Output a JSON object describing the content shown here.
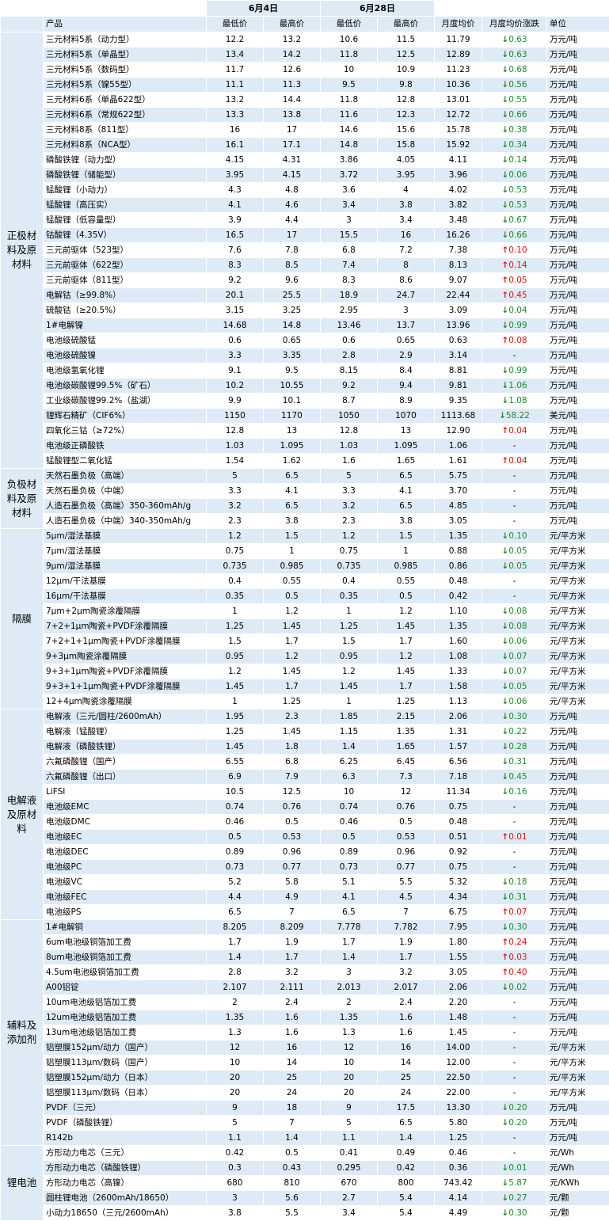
{
  "dates": {
    "d1": "6月4日",
    "d2": "6月28日"
  },
  "headers": [
    "产品",
    "最低价",
    "最高价",
    "最低价",
    "最高价",
    "月度均价",
    "月度均价涨跌",
    "单位"
  ],
  "categories": [
    {
      "name": "正极材料及原材料",
      "rows": [
        [
          "三元材料5系（动力型）",
          "12.2",
          "13.2",
          "10.6",
          "11.5",
          "11.79",
          "down",
          "0.63",
          "万元/吨"
        ],
        [
          "三元材料5系（单晶型）",
          "13.4",
          "14.2",
          "11.8",
          "12.5",
          "12.89",
          "down",
          "0.63",
          "万元/吨"
        ],
        [
          "三元材料5系（数码型）",
          "11.7",
          "12.6",
          "10",
          "10.9",
          "11.23",
          "down",
          "0.68",
          "万元/吨"
        ],
        [
          "三元材料5系（镍55型）",
          "11.1",
          "11.3",
          "9.5",
          "9.8",
          "10.36",
          "down",
          "0.56",
          "万元/吨"
        ],
        [
          "三元材料6系（单晶622型）",
          "13.2",
          "14.4",
          "11.8",
          "12.8",
          "13.01",
          "down",
          "0.55",
          "万元/吨"
        ],
        [
          "三元材料6系（常规622型）",
          "13.3",
          "13.8",
          "11.6",
          "12.3",
          "12.72",
          "down",
          "0.66",
          "万元/吨"
        ],
        [
          "三元材料8系（811型）",
          "16",
          "17",
          "14.6",
          "15.6",
          "15.78",
          "down",
          "0.38",
          "万元/吨"
        ],
        [
          "三元材料8系（NCA型）",
          "16.1",
          "17.1",
          "14.8",
          "15.8",
          "15.92",
          "down",
          "0.34",
          "万元/吨"
        ],
        [
          "磷酸铁锂（动力型）",
          "4.15",
          "4.31",
          "3.86",
          "4.05",
          "4.11",
          "down",
          "0.14",
          "万元/吨"
        ],
        [
          "磷酸铁锂（储能型）",
          "3.95",
          "4.15",
          "3.72",
          "3.95",
          "3.96",
          "down",
          "0.06",
          "万元/吨"
        ],
        [
          "锰酸锂（小动力）",
          "4.3",
          "4.8",
          "3.6",
          "4",
          "4.02",
          "down",
          "0.53",
          "万元/吨"
        ],
        [
          "锰酸锂（高压实）",
          "4.1",
          "4.6",
          "3.4",
          "3.8",
          "3.82",
          "down",
          "0.53",
          "万元/吨"
        ],
        [
          "锰酸锂（低容量型）",
          "3.9",
          "4.4",
          "3",
          "3.4",
          "3.48",
          "down",
          "0.67",
          "万元/吨"
        ],
        [
          "钴酸锂（4.35V）",
          "16.5",
          "17",
          "15.5",
          "16",
          "16.26",
          "down",
          "0.66",
          "万元/吨"
        ],
        [
          "三元前驱体（523型）",
          "7.6",
          "7.8",
          "6.8",
          "7.2",
          "7.38",
          "up",
          "0.10",
          "万元/吨"
        ],
        [
          "三元前驱体（622型）",
          "8.3",
          "8.5",
          "7.4",
          "8",
          "8.13",
          "up",
          "0.14",
          "万元/吨"
        ],
        [
          "三元前驱体（811型）",
          "9.2",
          "9.6",
          "8.3",
          "8.6",
          "9.07",
          "up",
          "0.05",
          "万元/吨"
        ],
        [
          "电解钴（≥99.8%）",
          "20.1",
          "25.5",
          "18.9",
          "24.7",
          "22.44",
          "up",
          "0.45",
          "万元/吨"
        ],
        [
          "硫酸钴（≥20.5%）",
          "3.15",
          "3.25",
          "2.95",
          "3",
          "3.09",
          "down",
          "0.04",
          "万元/吨"
        ],
        [
          "1#电解镍",
          "14.68",
          "14.8",
          "13.46",
          "13.7",
          "13.96",
          "down",
          "0.99",
          "万元/吨"
        ],
        [
          "电池级硫酸锰",
          "0.6",
          "0.65",
          "0.6",
          "0.65",
          "0.63",
          "up",
          "0.08",
          "万元/吨"
        ],
        [
          "电池级硫酸镍",
          "3.3",
          "3.35",
          "2.8",
          "2.9",
          "3.14",
          "none",
          "-",
          "万元/吨"
        ],
        [
          "电池级氢氧化锂",
          "9.1",
          "9.5",
          "8.15",
          "8.4",
          "8.81",
          "down",
          "0.99",
          "万元/吨"
        ],
        [
          "电池级碳酸锂99.5%（矿石）",
          "10.2",
          "10.55",
          "9.2",
          "9.4",
          "9.81",
          "down",
          "1.06",
          "万元/吨"
        ],
        [
          "工业级碳酸锂99.2%（盐湖）",
          "9.9",
          "10.1",
          "8.7",
          "8.9",
          "9.35",
          "down",
          "1.08",
          "万元/吨"
        ],
        [
          "锂辉石精矿（CIF6%）",
          "1150",
          "1170",
          "1050",
          "1070",
          "1113.68",
          "down",
          "58.22",
          "美元/吨"
        ],
        [
          "四氧化三钴（≥72%）",
          "12.8",
          "13",
          "12.8",
          "13",
          "12.90",
          "up",
          "0.04",
          "万元/吨"
        ],
        [
          "电池级正磷酸铁",
          "1.03",
          "1.095",
          "1.03",
          "1.095",
          "1.06",
          "none",
          "-",
          "万元/吨"
        ],
        [
          "锰酸锂型二氧化锰",
          "1.54",
          "1.62",
          "1.6",
          "1.65",
          "1.61",
          "up",
          "0.04",
          "万元/吨"
        ]
      ]
    },
    {
      "name": "负极材料及原材料",
      "rows": [
        [
          "天然石墨负极（高端）",
          "5",
          "6.5",
          "5",
          "6.5",
          "5.75",
          "none",
          "-",
          "万元/吨"
        ],
        [
          "天然石墨负极（中端）",
          "3.3",
          "4.1",
          "3.3",
          "4.1",
          "3.70",
          "none",
          "-",
          "万元/吨"
        ],
        [
          "人造石墨负极（高端）350-360mAh/g",
          "3.2",
          "6.5",
          "3.2",
          "6.5",
          "4.85",
          "none",
          "-",
          "万元/吨"
        ],
        [
          "人造石墨负极（中端）340-350mAh/g",
          "2.3",
          "3.8",
          "2.3",
          "3.8",
          "3.05",
          "none",
          "-",
          "万元/吨"
        ]
      ]
    },
    {
      "name": "隔膜",
      "rows": [
        [
          "5μm/湿法基膜",
          "1.2",
          "1.5",
          "1.2",
          "1.5",
          "1.35",
          "down",
          "0.10",
          "元/平方米"
        ],
        [
          "7μm/湿法基膜",
          "0.75",
          "1",
          "0.75",
          "1",
          "0.88",
          "down",
          "0.05",
          "元/平方米"
        ],
        [
          "9μm/湿法基膜",
          "0.735",
          "0.985",
          "0.735",
          "0.985",
          "0.86",
          "down",
          "0.05",
          "元/平方米"
        ],
        [
          "12μm/干法基膜",
          "0.4",
          "0.55",
          "0.4",
          "0.55",
          "0.48",
          "none",
          "-",
          "元/平方米"
        ],
        [
          "16μm/干法基膜",
          "0.35",
          "0.5",
          "0.35",
          "0.5",
          "0.42",
          "none",
          "-",
          "元/平方米"
        ],
        [
          "7μm+2μm陶瓷涂覆隔膜",
          "1",
          "1.2",
          "1",
          "1.2",
          "1.10",
          "down",
          "0.08",
          "元/平方米"
        ],
        [
          "7+2+1μm陶瓷+PVDF涂覆隔膜",
          "1.25",
          "1.45",
          "1.25",
          "1.45",
          "1.35",
          "down",
          "0.08",
          "元/平方米"
        ],
        [
          "7+2+1+1μm陶瓷+PVDF涂覆隔膜",
          "1.5",
          "1.7",
          "1.5",
          "1.7",
          "1.60",
          "down",
          "0.06",
          "元/平方米"
        ],
        [
          "9+3μm陶瓷涂覆隔膜",
          "0.95",
          "1.2",
          "0.95",
          "1.2",
          "1.08",
          "down",
          "0.07",
          "元/平方米"
        ],
        [
          "9+3+1μm陶瓷+PVDF涂覆隔膜",
          "1.2",
          "1.45",
          "1.2",
          "1.45",
          "1.33",
          "down",
          "0.07",
          "元/平方米"
        ],
        [
          "9+3+1+1μm陶瓷+PVDF涂覆隔膜",
          "1.45",
          "1.7",
          "1.45",
          "1.7",
          "1.58",
          "down",
          "0.05",
          "元/平方米"
        ],
        [
          "12+4μm陶瓷涂覆隔膜",
          "1",
          "1.25",
          "1",
          "1.25",
          "1.13",
          "down",
          "0.06",
          "元/平方米"
        ]
      ]
    },
    {
      "name": "电解液及原材料",
      "rows": [
        [
          "电解液（三元/圆柱/2600mAh）",
          "1.95",
          "2.3",
          "1.85",
          "2.15",
          "2.06",
          "down",
          "0.30",
          "万元/吨"
        ],
        [
          "电解液（锰酸锂）",
          "1.25",
          "1.45",
          "1.15",
          "1.35",
          "1.31",
          "down",
          "0.22",
          "万元/吨"
        ],
        [
          "电解液（磷酸铁锂）",
          "1.45",
          "1.8",
          "1.4",
          "1.65",
          "1.57",
          "down",
          "0.28",
          "万元/吨"
        ],
        [
          "六氟磷酸锂（国产）",
          "6.55",
          "6.8",
          "6.25",
          "6.45",
          "6.56",
          "down",
          "0.31",
          "万元/吨"
        ],
        [
          "六氟磷酸锂（出口）",
          "6.9",
          "7.9",
          "6.3",
          "7.3",
          "7.18",
          "down",
          "0.45",
          "万元/吨"
        ],
        [
          "LiFSI",
          "10.5",
          "12.5",
          "10",
          "12",
          "11.34",
          "down",
          "0.16",
          "万元/吨"
        ],
        [
          "电池级EMC",
          "0.74",
          "0.76",
          "0.74",
          "0.76",
          "0.75",
          "none",
          "-",
          "万元/吨"
        ],
        [
          "电池级DMC",
          "0.46",
          "0.5",
          "0.46",
          "0.5",
          "0.48",
          "none",
          "-",
          "万元/吨"
        ],
        [
          "电池级EC",
          "0.5",
          "0.53",
          "0.5",
          "0.53",
          "0.51",
          "up",
          "0.01",
          "万元/吨"
        ],
        [
          "电池级DEC",
          "0.89",
          "0.96",
          "0.89",
          "0.96",
          "0.92",
          "none",
          "-",
          "万元/吨"
        ],
        [
          "电池级PC",
          "0.73",
          "0.77",
          "0.73",
          "0.77",
          "0.75",
          "none",
          "-",
          "万元/吨"
        ],
        [
          "电池级VC",
          "5.2",
          "5.8",
          "5.1",
          "5.5",
          "5.32",
          "down",
          "0.18",
          "万元/吨"
        ],
        [
          "电池级FEC",
          "4.4",
          "4.9",
          "4.1",
          "4.5",
          "4.34",
          "down",
          "0.31",
          "万元/吨"
        ],
        [
          "电池级PS",
          "6.5",
          "7",
          "6.5",
          "7",
          "6.75",
          "up",
          "0.07",
          "万元/吨"
        ]
      ]
    },
    {
      "name": "辅料及添加剂",
      "rows": [
        [
          "1#电解铜",
          "8.205",
          "8.209",
          "7.778",
          "7.782",
          "7.95",
          "down",
          "0.30",
          "万元/吨"
        ],
        [
          "6um电池级铜箔加工费",
          "1.7",
          "1.9",
          "1.7",
          "1.9",
          "1.80",
          "up",
          "0.24",
          "万元/吨"
        ],
        [
          "8um电池级铜箔加工费",
          "1.4",
          "1.7",
          "1.4",
          "1.7",
          "1.55",
          "up",
          "0.03",
          "万元/吨"
        ],
        [
          "4.5um电池级铜箔加工费",
          "2.8",
          "3.2",
          "3",
          "3.2",
          "3.05",
          "up",
          "0.40",
          "万元/吨"
        ],
        [
          "A00铝锭",
          "2.107",
          "2.111",
          "2.013",
          "2.017",
          "2.06",
          "down",
          "0.02",
          "万元/吨"
        ],
        [
          "10um电池级铝箔加工费",
          "2",
          "2.4",
          "2",
          "2.4",
          "2.20",
          "none",
          "-",
          "万元/吨"
        ],
        [
          "12um电池级铝箔加工费",
          "1.35",
          "1.6",
          "1.35",
          "1.6",
          "1.48",
          "none",
          "-",
          "万元/吨"
        ],
        [
          "13um电池级铝箔加工费",
          "1.3",
          "1.6",
          "1.3",
          "1.6",
          "1.45",
          "none",
          "-",
          "万元/吨"
        ],
        [
          "铝塑膜152μm/动力（国产）",
          "12",
          "16",
          "12",
          "16",
          "14.00",
          "none",
          "-",
          "元/平方米"
        ],
        [
          "铝塑膜113μm/数码（国产）",
          "10",
          "14",
          "10",
          "14",
          "12.00",
          "none",
          "-",
          "元/平方米"
        ],
        [
          "铝塑膜152μm/动力（日本）",
          "20",
          "25",
          "20",
          "25",
          "22.50",
          "none",
          "-",
          "元/平方米"
        ],
        [
          "铝塑膜113μm/数码（日本）",
          "20",
          "24",
          "20",
          "24",
          "22.00",
          "none",
          "-",
          "元/平方米"
        ],
        [
          "PVDF（三元）",
          "9",
          "18",
          "9",
          "17.5",
          "13.30",
          "down",
          "0.20",
          "万元/吨"
        ],
        [
          "PVDF（磷酸铁锂）",
          "5",
          "7",
          "5",
          "6.5",
          "5.80",
          "down",
          "0.20",
          "万元/吨"
        ],
        [
          "R142b",
          "1.1",
          "1.4",
          "1.1",
          "1.4",
          "1.25",
          "none",
          "-",
          "万元/吨"
        ]
      ]
    },
    {
      "name": "锂电池",
      "rows": [
        [
          "方形动力电芯（三元）",
          "0.42",
          "0.5",
          "0.41",
          "0.49",
          "0.46",
          "none",
          "-",
          "元/Wh"
        ],
        [
          "方形动力电芯（磷酸铁锂）",
          "0.3",
          "0.43",
          "0.295",
          "0.42",
          "0.36",
          "down",
          "0.01",
          "元/Wh"
        ],
        [
          "方形动力电芯（高镍）",
          "680",
          "810",
          "670",
          "800",
          "743.42",
          "down",
          "5.87",
          "元/KWh"
        ],
        [
          "圆柱锂电池（2600mAh/18650）",
          "3",
          "5.6",
          "2.7",
          "5.4",
          "4.14",
          "down",
          "0.27",
          "元/颗"
        ],
        [
          "小动力18650（三元/2600mAh）",
          "3.8",
          "5.5",
          "3.4",
          "5.4",
          "4.49",
          "down",
          "0.30",
          "元/颗"
        ]
      ]
    }
  ]
}
